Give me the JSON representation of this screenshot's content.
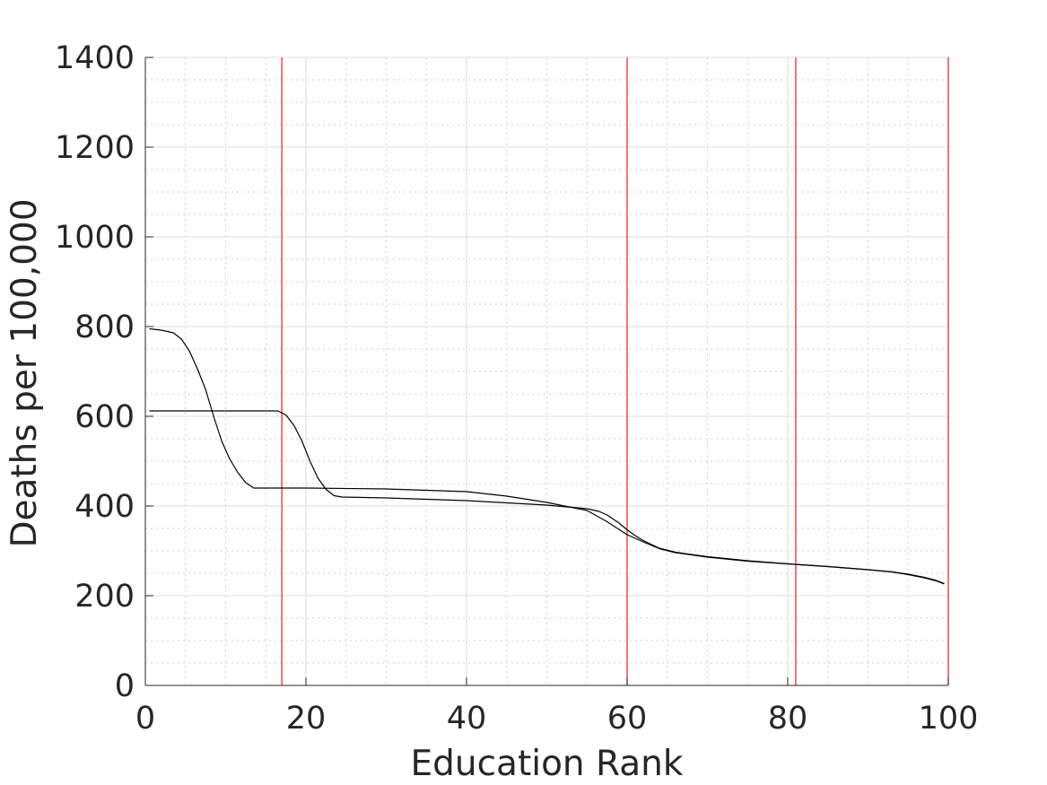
{
  "chart_data": {
    "type": "line",
    "title": "",
    "xlabel": "Education Rank",
    "ylabel": "Deaths per 100,000",
    "xlim": [
      0,
      100
    ],
    "ylim": [
      0,
      1400
    ],
    "xticks": [
      0,
      20,
      40,
      60,
      80,
      100
    ],
    "yticks": [
      0,
      200,
      400,
      600,
      800,
      1000,
      1200,
      1400
    ],
    "xtick_labels": [
      "0",
      "20",
      "40",
      "60",
      "80",
      "100"
    ],
    "ytick_labels": [
      "0",
      "200",
      "400",
      "600",
      "800",
      "1000",
      "1200",
      "1400"
    ],
    "grid": true,
    "minor_grid": true,
    "legend": "none",
    "vertical_lines": [
      {
        "x": 17,
        "color": "#e03030"
      },
      {
        "x": 60,
        "color": "#e03030"
      },
      {
        "x": 81,
        "color": "#e03030"
      },
      {
        "x": 100,
        "color": "#e03030"
      }
    ],
    "series": [
      {
        "color": "#000000",
        "x": [
          0.5,
          2,
          3.5,
          4.5,
          5.5,
          6.5,
          7.5,
          8.5,
          9.5,
          10.5,
          11.5,
          12.5,
          13.5,
          15,
          20,
          30,
          40,
          45,
          50,
          55,
          57.5,
          60,
          62,
          64,
          66,
          70,
          75,
          80,
          85,
          90,
          93,
          95,
          97,
          98.5,
          99.5
        ],
        "y": [
          795,
          792,
          786,
          772,
          745,
          705,
          660,
          600,
          545,
          505,
          475,
          452,
          440,
          440,
          440,
          438,
          432,
          422,
          408,
          390,
          365,
          336,
          320,
          305,
          296,
          286,
          277,
          271,
          265,
          258,
          253,
          247,
          240,
          233,
          226
        ]
      },
      {
        "color": "#000000",
        "x": [
          0.5,
          5,
          10,
          16.5,
          17.5,
          18.5,
          19.5,
          20.5,
          21.5,
          22.5,
          23.5,
          24.5,
          30,
          40,
          50,
          55,
          56.5,
          57.5,
          59,
          60,
          61,
          62,
          64,
          66,
          70,
          75,
          80,
          85,
          90,
          93,
          95,
          97,
          98.5,
          99.5
        ],
        "y": [
          612,
          612,
          612,
          612,
          603,
          580,
          545,
          500,
          462,
          437,
          423,
          420,
          418,
          412,
          402,
          394,
          388,
          380,
          362,
          347,
          334,
          323,
          306,
          297,
          287,
          278,
          271,
          265,
          258,
          253,
          248,
          241,
          234,
          227
        ]
      }
    ]
  }
}
